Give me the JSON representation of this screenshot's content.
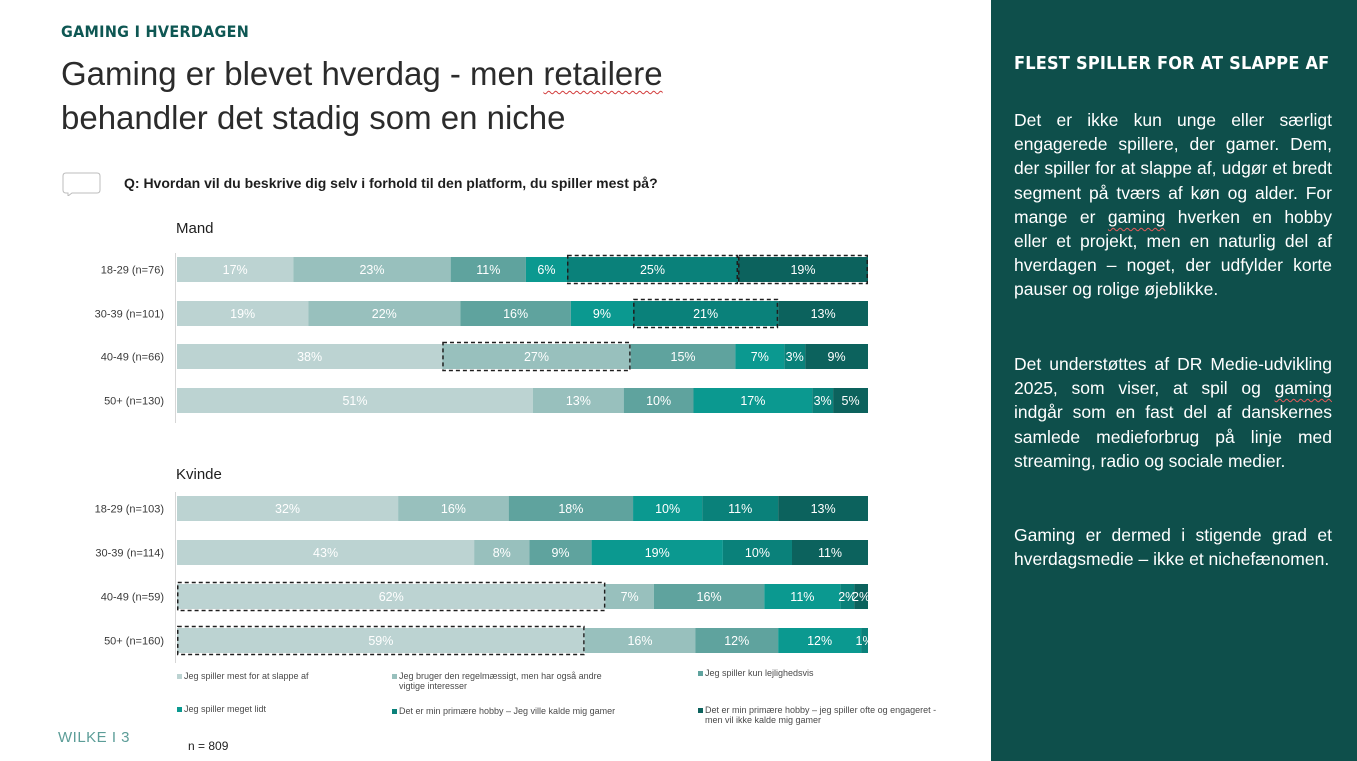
{
  "header": {
    "kicker": "GAMING I HVERDAGEN",
    "title_part1": "Gaming er blevet hverdag - men ",
    "title_wavy": "retailere",
    "title_part2": "behandler det stadig som en niche"
  },
  "question": "Q: Hvordan vil du beskrive dig selv i forhold til den platform, du spiller mest på?",
  "footer": {
    "brand": "WILKE I 3",
    "n": "n = 809"
  },
  "sidebar": {
    "title": "FLEST SPILLER FOR AT SLAPPE AF",
    "p1_a": "Det er ikke kun unge eller særligt engagerede spillere, der gamer. Dem, der spiller for at slappe af, udgør et bredt segment på tværs af køn og alder. For mange er ",
    "p1_wavy": "gaming",
    "p1_b": " hverken en hobby eller et projekt, men en naturlig del af hverdagen – noget, der udfylder korte pauser og rolige øjeblikke.",
    "p2_a": "Det understøttes af DR Medie-udvikling 2025, som viser, at spil og ",
    "p2_wavy": "gaming",
    "p2_b": " indgår som en fast del af danskernes samlede medieforbrug på linje med streaming, radio og sociale medier.",
    "p3": "Gaming er dermed i stigende grad et hverdagsmedie – ikke et nichefænomen."
  },
  "chart_data": {
    "type": "bar",
    "orientation": "horizontal",
    "stacked": true,
    "xlim": [
      0,
      100
    ],
    "series": [
      {
        "name": "Jeg spiller mest for at slappe af",
        "color": "#bcd3d2"
      },
      {
        "name": "Jeg bruger den regelmæssigt, men har også andre vigtige interesser",
        "color": "#98c0bd"
      },
      {
        "name": "Jeg spiller kun lejlighedsvis",
        "color": "#5fa39e"
      },
      {
        "name": "Jeg spiller meget lidt",
        "color": "#0b9990"
      },
      {
        "name": "Det er min primære hobby – Jeg ville kalde mig gamer",
        "color": "#0a817a"
      },
      {
        "name": "Det er min primære hobby – jeg spiller ofte og engageret - men vil ikke kalde mig gamer",
        "color": "#0c625d"
      }
    ],
    "groups": [
      {
        "name": "Mand",
        "rows": [
          {
            "category": "18-29 (n=76)",
            "values": [
              17,
              23,
              11,
              6,
              25,
              19
            ],
            "highlight": [
              4,
              5
            ]
          },
          {
            "category": "30-39 (n=101)",
            "values": [
              19,
              22,
              16,
              9,
              21,
              13
            ],
            "highlight": [
              4
            ]
          },
          {
            "category": "40-49 (n=66)",
            "values": [
              38,
              27,
              15,
              7,
              3,
              9
            ],
            "highlight": [
              1
            ]
          },
          {
            "category": "50+ (n=130)",
            "values": [
              51,
              13,
              10,
              17,
              3,
              5
            ],
            "highlight": []
          }
        ]
      },
      {
        "name": "Kvinde",
        "rows": [
          {
            "category": "18-29 (n=103)",
            "values": [
              32,
              16,
              18,
              10,
              11,
              13
            ],
            "highlight": []
          },
          {
            "category": "30-39 (n=114)",
            "values": [
              43,
              8,
              9,
              19,
              10,
              11
            ],
            "highlight": []
          },
          {
            "category": "40-49 (n=59)",
            "values": [
              62,
              7,
              16,
              11,
              2,
              2
            ],
            "highlight": [
              0
            ]
          },
          {
            "category": "50+ (n=160)",
            "values": [
              59,
              16,
              12,
              12,
              1,
              0
            ],
            "highlight": [
              0
            ]
          }
        ]
      }
    ]
  }
}
